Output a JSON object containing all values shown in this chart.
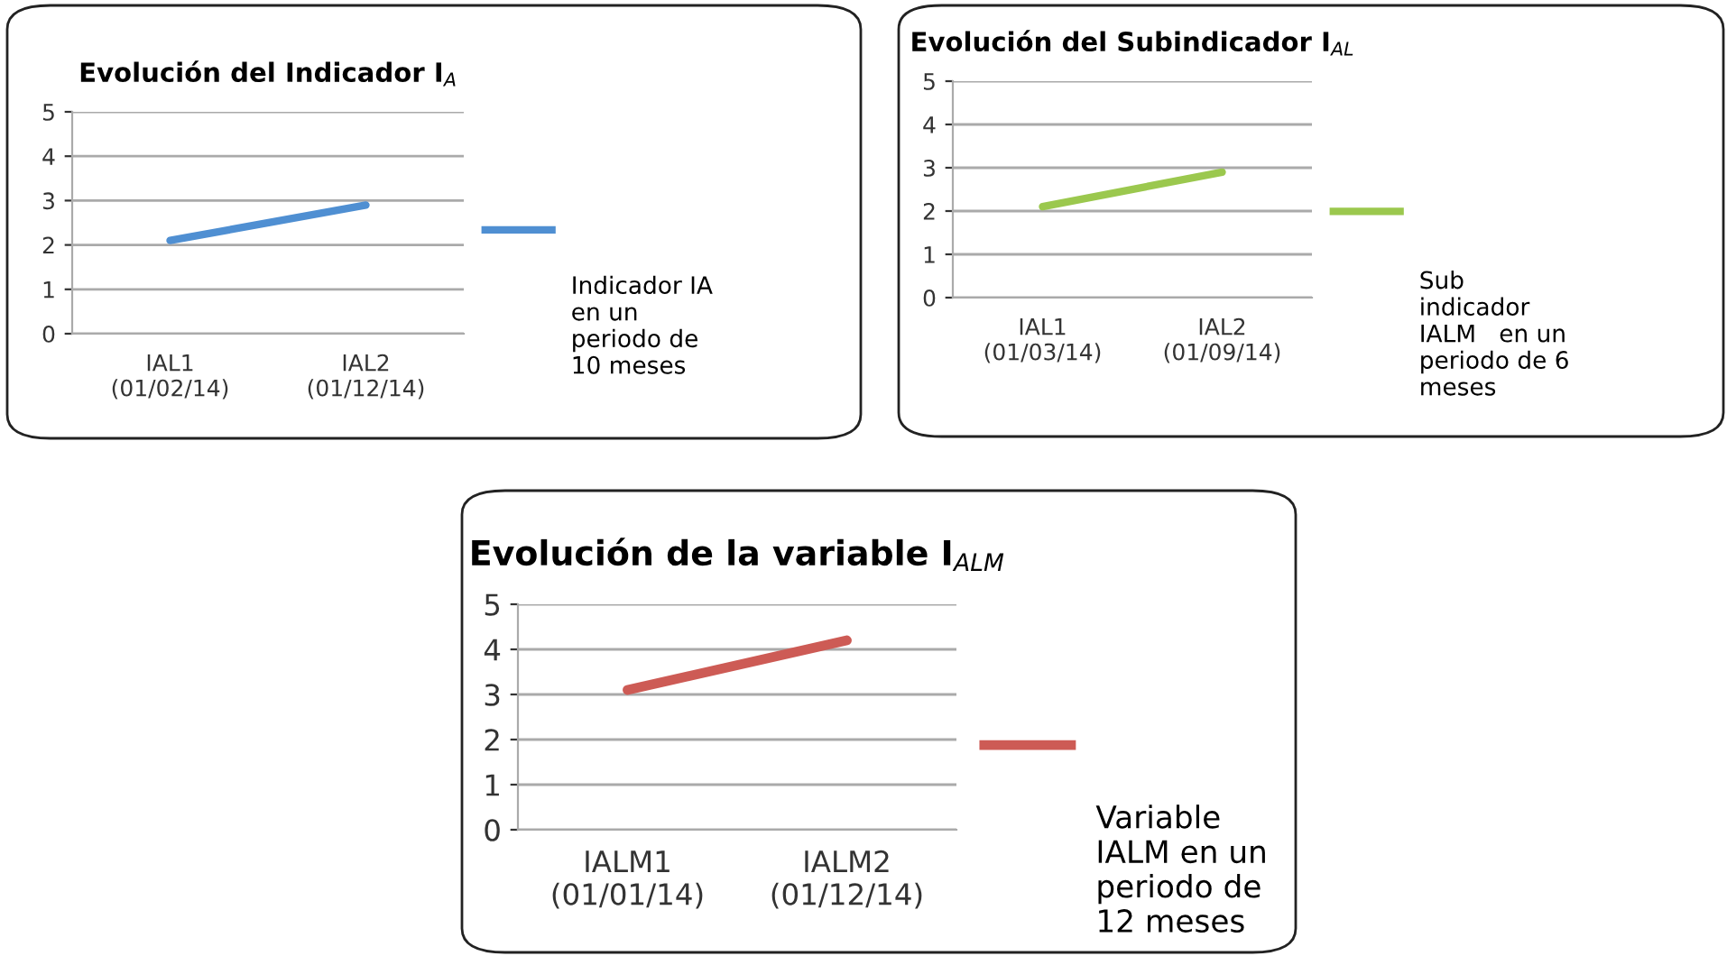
{
  "chart_data": [
    {
      "type": "line",
      "title": "Evolución del Indicador I$_{A}$",
      "categories": [
        "IAL1\n(01/02/14)",
        "IAL2\n(01/12/14)"
      ],
      "series": [
        {
          "name": "Indicador IA\nen un\nperiodo de\n10 meses",
          "color": "#4f8fd2",
          "values": [
            2.1,
            2.9
          ]
        }
      ],
      "ylim": [
        0,
        5
      ],
      "yticks": [
        0,
        1,
        2,
        3,
        4,
        5
      ],
      "grid": "y",
      "legend": "right",
      "marker": "none",
      "line_style": "solid"
    },
    {
      "type": "line",
      "title": "Evolución del Subindicador I$_{AL}$",
      "categories": [
        "IAL1\n(01/03/14)",
        "IAL2\n(01/09/14)"
      ],
      "series": [
        {
          "name": "Sub\nindicador\nIALM   en un\nperiodo de 6\nmeses",
          "color": "#9bc84e",
          "values": [
            2.1,
            2.9
          ]
        }
      ],
      "ylim": [
        0,
        5
      ],
      "yticks": [
        0,
        1,
        2,
        3,
        4,
        5
      ],
      "grid": "y",
      "legend": "right",
      "marker": "none",
      "line_style": "solid"
    },
    {
      "type": "line",
      "title": "Evolución de la variable I$_{ALM}$",
      "categories": [
        "IALM1\n(01/01/14)",
        "IALM2\n(01/12/14)"
      ],
      "series": [
        {
          "name": "Variable\nIALM en un\nperiodo de\n12 meses",
          "color": "#cd5b55",
          "values": [
            3.1,
            4.2
          ]
        }
      ],
      "ylim": [
        0,
        5
      ],
      "yticks": [
        0,
        1,
        2,
        3,
        4,
        5
      ],
      "grid": "y",
      "legend": "right",
      "marker": "none",
      "line_style": "solid"
    }
  ]
}
